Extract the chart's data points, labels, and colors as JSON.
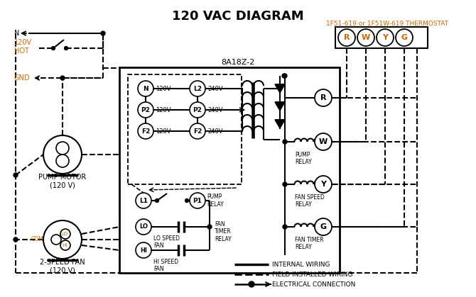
{
  "title": "120 VAC DIAGRAM",
  "bg_color": "#ffffff",
  "line_color": "#000000",
  "orange_color": "#cc6600",
  "thermostat_label": "1F51-619 or 1F51W-619 THERMOSTAT",
  "control_box_label": "8A18Z-2",
  "pump_motor_label": "PUMP MOTOR\n(120 V)",
  "fan_label": "2-SPEED FAN\n(120 V)",
  "terminal_labels": [
    "R",
    "W",
    "Y",
    "G"
  ],
  "left_terminals": [
    "N",
    "P2",
    "F2"
  ],
  "right_terminals": [
    "L2",
    "P2",
    "F2"
  ],
  "left_voltages": [
    "120V",
    "120V",
    "120V"
  ],
  "right_voltages": [
    "240V",
    "240V",
    "240V"
  ],
  "coil_labels": [
    "R",
    "W",
    "Y",
    "G"
  ],
  "coil_texts": [
    "",
    "PUMP\nRELAY",
    "FAN SPEED\nRELAY",
    "FAN TIMER\nRELAY"
  ]
}
